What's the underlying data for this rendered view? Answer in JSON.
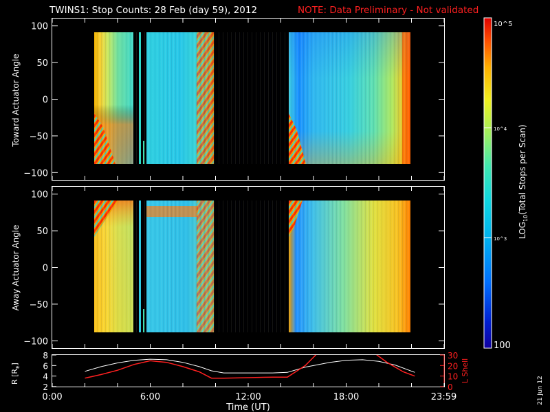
{
  "header": {
    "title": "TWINS1: Stop Counts: 28 Feb (day  59), 2012",
    "note": "NOTE: Data Preliminary - Not validated"
  },
  "side_date": "21 Jun 12",
  "colors": {
    "background": "#000000",
    "axes": "#ffffff",
    "note": "#ff2020",
    "lshell_line": "#ff2020",
    "r_line": "#ffffff"
  },
  "colorbar": {
    "label": "LOG10(Total Stops per Scan)",
    "label_parts": [
      "LOG",
      "10",
      "(Total Stops per Scan)"
    ],
    "top_label": "10^5",
    "mid_label": "10^4",
    "low_label": "10^3",
    "bottom_label": "100",
    "scale": "log",
    "range": [
      100,
      100000
    ]
  },
  "chart_data": [
    {
      "type": "heatmap",
      "title": "",
      "ylabel": "Toward Actuator Angle",
      "xlabel": "",
      "xlim": [
        0,
        24
      ],
      "ylim": [
        -110,
        110
      ],
      "yticks": [
        "100",
        "50",
        "0",
        "−50",
        "−100"
      ],
      "ytick_values": [
        100,
        50,
        0,
        -50,
        -100
      ],
      "angle_range": [
        -88,
        90
      ],
      "data_segments_hours": [
        [
          2.0,
          4.85
        ],
        [
          4.95,
          5.0
        ],
        [
          5.25,
          5.3
        ],
        [
          5.5,
          9.75
        ],
        [
          14.4,
          22.2
        ]
      ],
      "value_scale": "log10 total stops per scan"
    },
    {
      "type": "heatmap",
      "title": "",
      "ylabel": "Away Actuator Angle",
      "xlabel": "",
      "xlim": [
        0,
        24
      ],
      "ylim": [
        -110,
        110
      ],
      "yticks": [
        "100",
        "50",
        "0",
        "−50",
        "−100"
      ],
      "ytick_values": [
        100,
        50,
        0,
        -50,
        -100
      ],
      "angle_range": [
        -88,
        90
      ],
      "data_segments_hours": [
        [
          2.0,
          4.85
        ],
        [
          4.95,
          5.0
        ],
        [
          5.25,
          5.3
        ],
        [
          5.5,
          9.75
        ],
        [
          14.4,
          22.2
        ]
      ],
      "value_scale": "log10 total stops per scan"
    },
    {
      "type": "line",
      "title": "",
      "xlabel": "Time (UT)",
      "ylabel_left": "R [RE]",
      "ylabel_left_parts": [
        "R [R",
        "E",
        "]"
      ],
      "ylabel_right": "L Shell",
      "xlim": [
        0,
        24
      ],
      "xticks": [
        "0:00",
        "6:00",
        "12:00",
        "18:00",
        "23:59"
      ],
      "xtick_values": [
        0,
        6,
        12,
        18,
        23.98
      ],
      "ylim_left": [
        2,
        8
      ],
      "yticks_left": [
        "8",
        "6",
        "4",
        "2"
      ],
      "ytick_values_left": [
        8,
        6,
        4,
        2
      ],
      "ylim_right": [
        0,
        30
      ],
      "yticks_right": [
        "30",
        "20",
        "10",
        "0"
      ],
      "ytick_values_right": [
        30,
        20,
        10,
        0
      ],
      "series": [
        {
          "axis": "left",
          "x": [
            2.0,
            3.0,
            4.0,
            5.0,
            6.0,
            7.0,
            8.0,
            9.0,
            9.75,
            10.5,
            12.0,
            13.5,
            14.4,
            15.5,
            17.0,
            18.0,
            19.0,
            20.0,
            21.0,
            22.2
          ],
          "y": [
            4.9,
            5.8,
            6.5,
            7.0,
            7.2,
            7.1,
            6.6,
            5.8,
            5.0,
            4.6,
            4.6,
            4.6,
            4.7,
            5.7,
            6.6,
            7.0,
            7.1,
            6.8,
            6.1,
            4.7
          ]
        },
        {
          "axis": "right",
          "x": [
            2.0,
            3.0,
            4.0,
            5.0,
            6.0,
            7.0,
            8.0,
            9.0,
            9.75,
            10.5,
            12.0,
            13.5,
            14.4,
            15.5,
            16.2,
            19.8,
            20.5,
            21.5,
            22.2
          ],
          "y": [
            8,
            11.5,
            15.5,
            21,
            24.5,
            23,
            19,
            14,
            8,
            8,
            8.5,
            9,
            9,
            20,
            31,
            31,
            23,
            14,
            10
          ]
        }
      ]
    }
  ]
}
